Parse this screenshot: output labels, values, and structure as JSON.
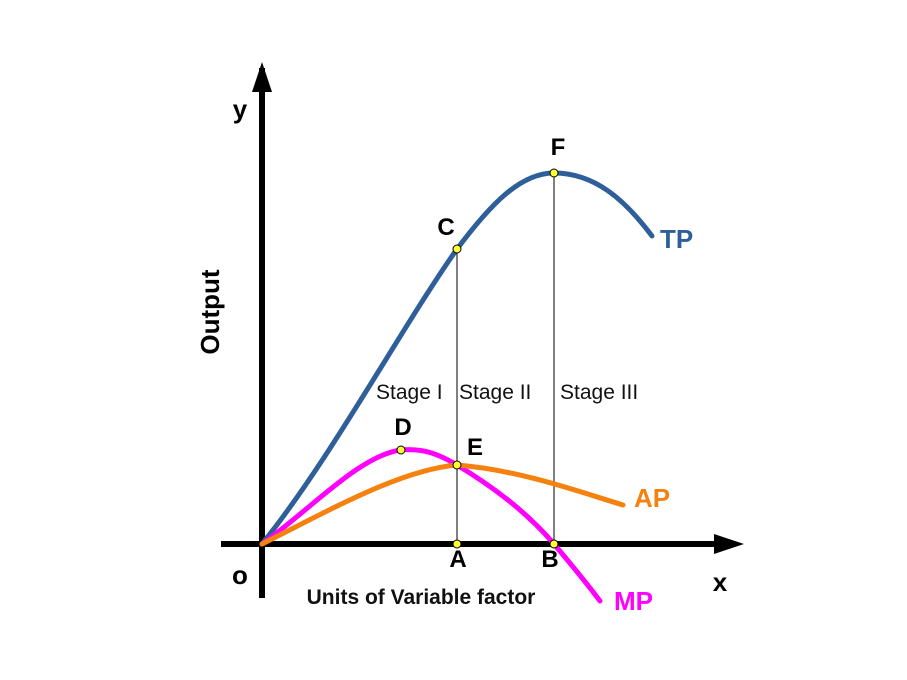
{
  "axes": {
    "y_letter": "y",
    "x_letter": "x",
    "origin_letter": "o",
    "y_title": "Output",
    "x_title": "Units of Variable factor"
  },
  "curves": {
    "tp": {
      "label": "TP",
      "color": "#2e5f9a"
    },
    "mp": {
      "label": "MP",
      "color": "#ff00ff"
    },
    "ap": {
      "label": "AP",
      "color": "#f5810f"
    }
  },
  "points": {
    "a": "A",
    "b": "B",
    "c": "C",
    "d": "D",
    "e": "E",
    "f": "F"
  },
  "point_color": "#ffff33",
  "stages": {
    "one": "Stage I",
    "two": "Stage II",
    "three": "Stage III"
  }
}
